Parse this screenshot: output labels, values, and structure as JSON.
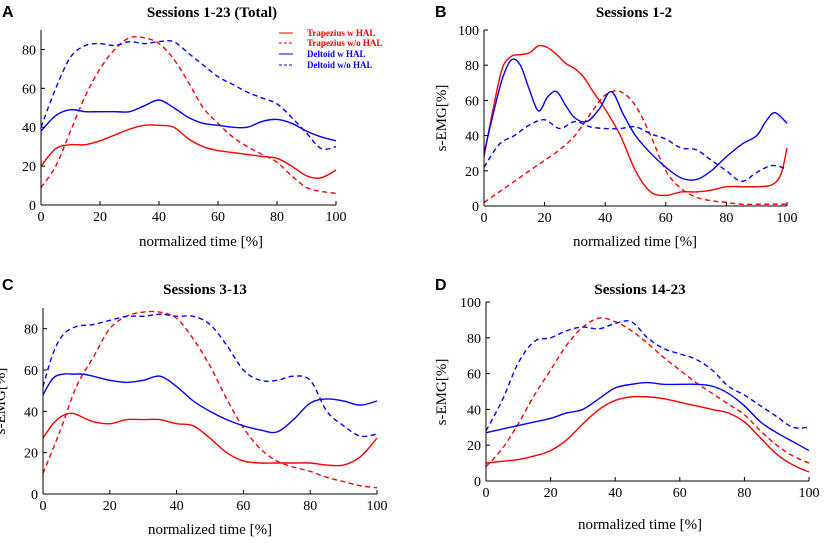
{
  "colors": {
    "trapezius": "#ff0000",
    "deltoid": "#0000ff",
    "axis": "#000000"
  },
  "legend": [
    {
      "label": "Trapezius w HAL",
      "color": "#ff0000",
      "dashed": false
    },
    {
      "label": "Trapezius w/o HAL",
      "color": "#ff0000",
      "dashed": true
    },
    {
      "label": "Deltoid w HAL",
      "color": "#0000ff",
      "dashed": false
    },
    {
      "label": "Deltoid w/o HAL",
      "color": "#0000ff",
      "dashed": true
    }
  ],
  "chart_data": [
    {
      "panel": "A",
      "type": "line",
      "title": "Sessions 1-23 (Total)",
      "xlabel": "normalized time [%]",
      "ylabel": "",
      "xlim": [
        0,
        100
      ],
      "ylim": [
        0,
        90
      ],
      "xticks": [
        0,
        20,
        40,
        60,
        80,
        100
      ],
      "yticks": [
        0,
        20,
        40,
        60,
        80
      ],
      "legend": "top-right",
      "series": [
        {
          "name": "Trapezius w HAL",
          "color": "#ff0000",
          "dashed": false,
          "x": [
            0,
            5,
            10,
            15,
            20,
            25,
            30,
            35,
            40,
            45,
            50,
            55,
            60,
            65,
            70,
            75,
            80,
            85,
            90,
            95,
            100
          ],
          "y": [
            20,
            29,
            31,
            31,
            33,
            36,
            39,
            41,
            41,
            40,
            34,
            30,
            28,
            27,
            26,
            25,
            24,
            20,
            15,
            14,
            18
          ]
        },
        {
          "name": "Trapezius w/o HAL",
          "color": "#ff0000",
          "dashed": true,
          "x": [
            0,
            5,
            10,
            15,
            20,
            25,
            30,
            35,
            40,
            45,
            50,
            55,
            60,
            65,
            70,
            75,
            80,
            85,
            90,
            95,
            100
          ],
          "y": [
            9,
            20,
            38,
            56,
            70,
            80,
            86,
            86,
            83,
            75,
            63,
            50,
            42,
            35,
            30,
            26,
            22,
            15,
            9,
            7,
            6
          ]
        },
        {
          "name": "Deltoid w HAL",
          "color": "#0000ff",
          "dashed": false,
          "x": [
            0,
            5,
            10,
            15,
            20,
            25,
            30,
            35,
            40,
            45,
            50,
            55,
            60,
            65,
            70,
            75,
            80,
            85,
            90,
            95,
            100
          ],
          "y": [
            38,
            46,
            49,
            48,
            48,
            48,
            48,
            51,
            54,
            50,
            45,
            42,
            41,
            40,
            40,
            43,
            44,
            42,
            38,
            35,
            33
          ]
        },
        {
          "name": "Deltoid w/o HAL",
          "color": "#0000ff",
          "dashed": true,
          "x": [
            0,
            5,
            10,
            15,
            20,
            25,
            30,
            35,
            40,
            45,
            50,
            55,
            60,
            65,
            70,
            75,
            80,
            85,
            90,
            95,
            100
          ],
          "y": [
            40,
            60,
            76,
            82,
            83,
            82,
            84,
            83,
            84,
            84,
            78,
            72,
            66,
            62,
            58,
            55,
            52,
            45,
            37,
            29,
            30
          ]
        }
      ]
    },
    {
      "panel": "B",
      "type": "line",
      "title": "Sessions 1-2",
      "xlabel": "normalized time [%]",
      "ylabel": "s-EMG[%]",
      "xlim": [
        0,
        100
      ],
      "ylim": [
        0,
        100
      ],
      "xticks": [
        0,
        20,
        40,
        60,
        80,
        100
      ],
      "yticks": [
        0,
        20,
        40,
        60,
        80,
        100
      ],
      "series": [
        {
          "name": "Trapezius w HAL",
          "color": "#ff0000",
          "dashed": false,
          "x": [
            0,
            3,
            6,
            9,
            12,
            15,
            18,
            21,
            24,
            27,
            30,
            33,
            36,
            40,
            45,
            50,
            55,
            60,
            65,
            70,
            75,
            80,
            85,
            90,
            95,
            98,
            100
          ],
          "y": [
            28,
            55,
            78,
            85,
            86,
            87,
            91,
            90,
            86,
            81,
            78,
            73,
            65,
            55,
            40,
            20,
            8,
            6,
            8,
            8,
            9,
            11,
            11,
            11,
            12,
            18,
            33
          ]
        },
        {
          "name": "Trapezius w/o HAL",
          "color": "#ff0000",
          "dashed": true,
          "x": [
            0,
            5,
            10,
            15,
            20,
            25,
            30,
            35,
            40,
            45,
            50,
            55,
            60,
            65,
            70,
            75,
            80,
            85,
            90,
            95,
            100
          ],
          "y": [
            2,
            8,
            14,
            20,
            26,
            32,
            40,
            52,
            63,
            65,
            57,
            40,
            20,
            10,
            5,
            3,
            2,
            1,
            1,
            1,
            1
          ]
        },
        {
          "name": "Deltoid w HAL",
          "color": "#0000ff",
          "dashed": false,
          "x": [
            0,
            3,
            6,
            9,
            12,
            15,
            18,
            21,
            24,
            27,
            30,
            34,
            38,
            42,
            46,
            50,
            55,
            60,
            65,
            70,
            75,
            80,
            85,
            90,
            93,
            96,
            100
          ],
          "y": [
            30,
            52,
            72,
            83,
            80,
            66,
            54,
            62,
            65,
            57,
            50,
            48,
            55,
            65,
            52,
            40,
            30,
            22,
            16,
            15,
            20,
            28,
            35,
            40,
            48,
            53,
            47
          ]
        },
        {
          "name": "Deltoid w/o HAL",
          "color": "#0000ff",
          "dashed": true,
          "x": [
            0,
            5,
            10,
            15,
            20,
            25,
            30,
            35,
            40,
            45,
            50,
            55,
            60,
            65,
            70,
            75,
            80,
            85,
            90,
            95,
            100
          ],
          "y": [
            22,
            35,
            40,
            46,
            49,
            44,
            48,
            45,
            44,
            44,
            45,
            41,
            38,
            33,
            32,
            26,
            20,
            14,
            19,
            23,
            21
          ]
        }
      ]
    },
    {
      "panel": "C",
      "type": "line",
      "title": "Sessions 3-13",
      "xlabel": "normalized time [%]",
      "ylabel": "s-EMG[%]",
      "xlim": [
        0,
        100
      ],
      "ylim": [
        0,
        90
      ],
      "xticks": [
        0,
        20,
        40,
        60,
        80,
        100
      ],
      "yticks": [
        0,
        20,
        40,
        60,
        80
      ],
      "series": [
        {
          "name": "Trapezius w HAL",
          "color": "#ff0000",
          "dashed": false,
          "x": [
            0,
            3,
            6,
            9,
            12,
            15,
            20,
            25,
            30,
            35,
            40,
            45,
            50,
            55,
            60,
            65,
            70,
            75,
            80,
            85,
            90,
            95,
            100
          ],
          "y": [
            27,
            34,
            38,
            39,
            37,
            35,
            34,
            36,
            36,
            36,
            34,
            33,
            27,
            20,
            16,
            15,
            15,
            15,
            15,
            14,
            14,
            18,
            27
          ]
        },
        {
          "name": "Trapezius w/o HAL",
          "color": "#ff0000",
          "dashed": true,
          "x": [
            0,
            5,
            10,
            15,
            20,
            25,
            30,
            35,
            40,
            45,
            50,
            55,
            60,
            65,
            70,
            75,
            80,
            85,
            90,
            95,
            100
          ],
          "y": [
            10,
            30,
            52,
            66,
            80,
            86,
            88,
            88,
            85,
            75,
            62,
            46,
            32,
            22,
            16,
            13,
            11,
            8,
            6,
            4,
            3
          ]
        },
        {
          "name": "Deltoid w HAL",
          "color": "#0000ff",
          "dashed": false,
          "x": [
            0,
            3,
            6,
            9,
            12,
            15,
            20,
            25,
            30,
            35,
            40,
            45,
            50,
            55,
            60,
            65,
            70,
            75,
            80,
            85,
            90,
            95,
            100
          ],
          "y": [
            48,
            56,
            58,
            58,
            58,
            57,
            55,
            54,
            55,
            57,
            52,
            45,
            40,
            36,
            33,
            31,
            30,
            36,
            44,
            46,
            45,
            43,
            45
          ]
        },
        {
          "name": "Deltoid w/o HAL",
          "color": "#0000ff",
          "dashed": true,
          "x": [
            0,
            3,
            6,
            10,
            15,
            20,
            25,
            30,
            35,
            40,
            45,
            50,
            55,
            60,
            65,
            70,
            75,
            80,
            85,
            90,
            95,
            100
          ],
          "y": [
            52,
            68,
            77,
            81,
            82,
            84,
            86,
            86,
            87,
            86,
            86,
            82,
            72,
            60,
            55,
            55,
            57,
            55,
            40,
            33,
            28,
            29
          ]
        }
      ]
    },
    {
      "panel": "D",
      "type": "line",
      "title": "Sessions 14-23",
      "xlabel": "normalized time [%]",
      "ylabel": "s-EMG[%]",
      "xlim": [
        0,
        100
      ],
      "ylim": [
        0,
        100
      ],
      "xticks": [
        0,
        20,
        40,
        60,
        80,
        100
      ],
      "yticks": [
        0,
        20,
        40,
        60,
        80,
        100
      ],
      "series": [
        {
          "name": "Trapezius w HAL",
          "color": "#ff0000",
          "dashed": false,
          "x": [
            0,
            5,
            10,
            15,
            20,
            25,
            30,
            35,
            40,
            45,
            50,
            55,
            60,
            65,
            70,
            75,
            80,
            85,
            90,
            95,
            100
          ],
          "y": [
            10,
            11,
            12,
            14,
            17,
            23,
            32,
            40,
            45,
            47,
            47,
            46,
            44,
            42,
            40,
            38,
            33,
            24,
            15,
            9,
            5
          ]
        },
        {
          "name": "Trapezius w/o HAL",
          "color": "#ff0000",
          "dashed": true,
          "x": [
            0,
            5,
            10,
            15,
            20,
            25,
            30,
            35,
            40,
            45,
            50,
            55,
            60,
            65,
            70,
            75,
            80,
            85,
            90,
            95,
            100
          ],
          "y": [
            8,
            18,
            32,
            48,
            62,
            76,
            86,
            91,
            89,
            84,
            77,
            69,
            62,
            55,
            49,
            43,
            37,
            28,
            20,
            14,
            10
          ]
        },
        {
          "name": "Deltoid w HAL",
          "color": "#0000ff",
          "dashed": false,
          "x": [
            0,
            5,
            10,
            15,
            20,
            25,
            30,
            35,
            40,
            45,
            50,
            55,
            60,
            65,
            70,
            75,
            80,
            85,
            90,
            95,
            100
          ],
          "y": [
            27,
            29,
            31,
            33,
            35,
            38,
            40,
            46,
            52,
            54,
            55,
            54,
            54,
            54,
            53,
            49,
            42,
            33,
            27,
            22,
            17
          ]
        },
        {
          "name": "Deltoid w/o HAL",
          "color": "#0000ff",
          "dashed": true,
          "x": [
            0,
            5,
            10,
            15,
            20,
            25,
            30,
            35,
            40,
            45,
            50,
            55,
            60,
            65,
            70,
            75,
            80,
            85,
            90,
            95,
            100
          ],
          "y": [
            28,
            45,
            66,
            78,
            80,
            84,
            86,
            85,
            88,
            89,
            80,
            74,
            71,
            68,
            62,
            53,
            48,
            42,
            36,
            30,
            30
          ]
        }
      ]
    }
  ]
}
